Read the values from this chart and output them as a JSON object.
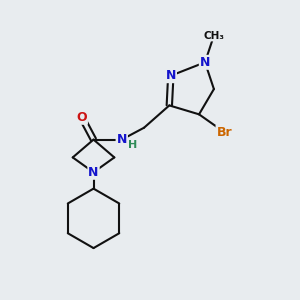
{
  "background_color": "#e8ecef",
  "atom_colors": {
    "N": "#1414cc",
    "O": "#cc1414",
    "Br": "#cc6600",
    "H": "#2e8b57",
    "C": "#111111"
  },
  "bond_color": "#111111",
  "bond_lw": 1.5,
  "figsize": [
    3.0,
    3.0
  ],
  "dpi": 100
}
